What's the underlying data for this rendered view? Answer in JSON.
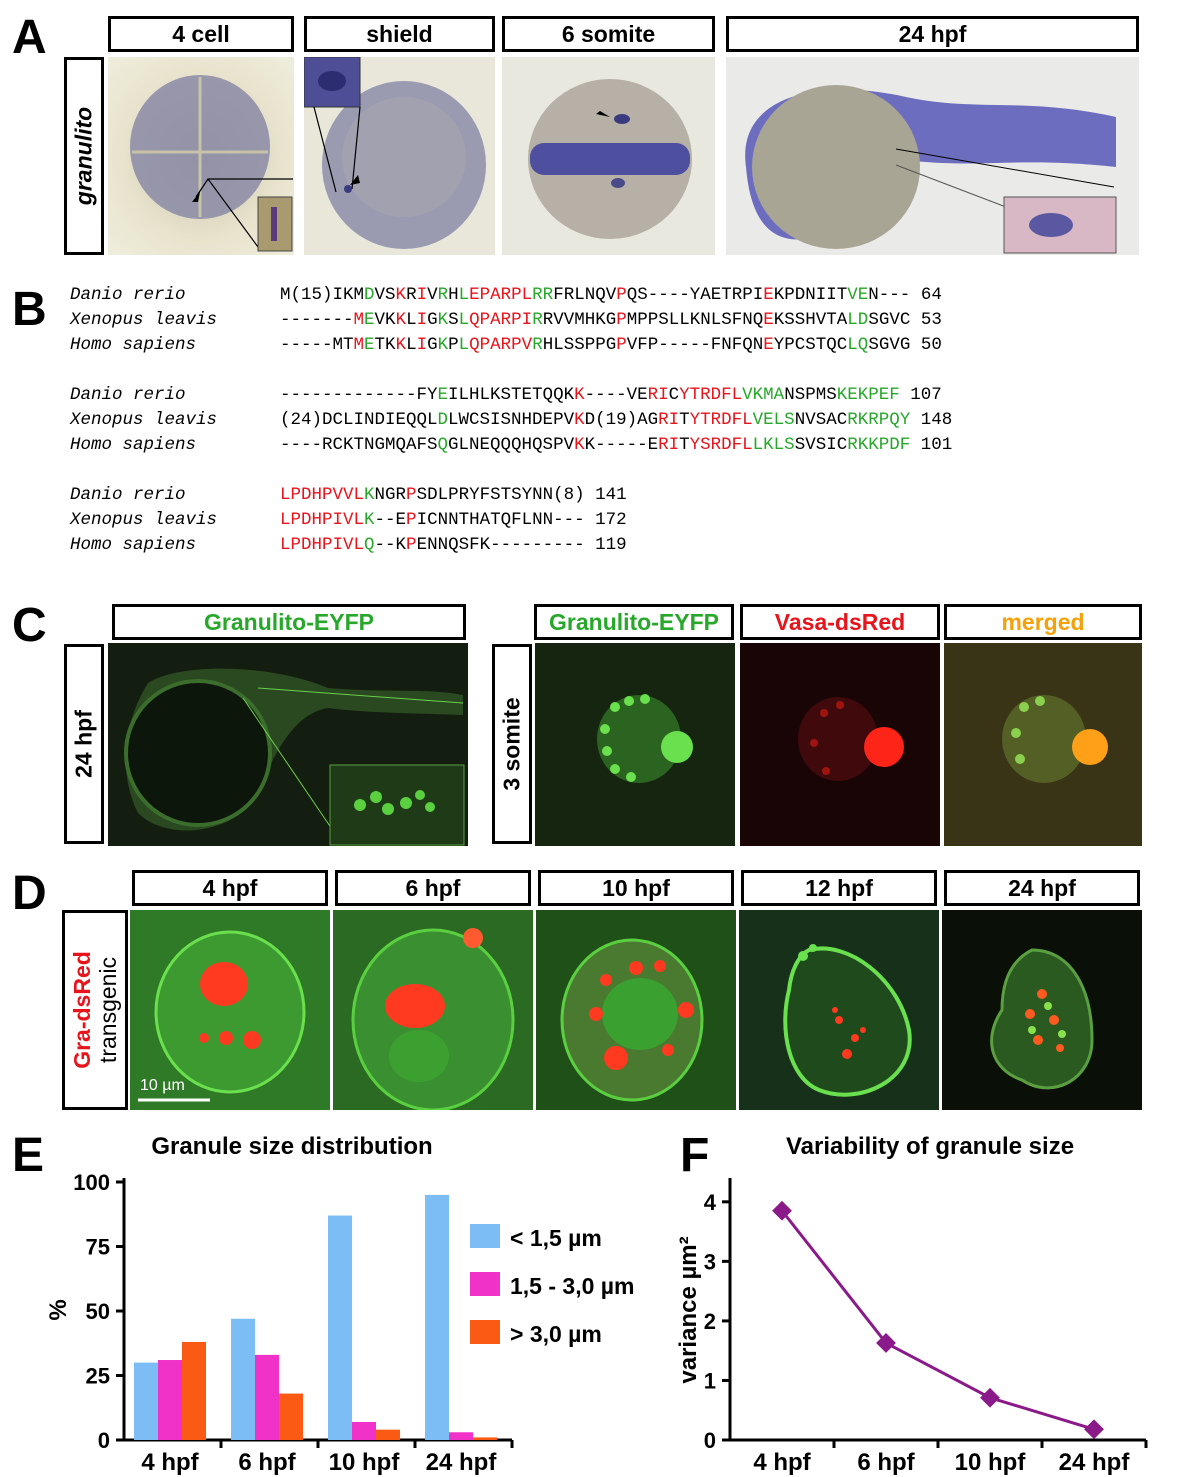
{
  "panel_letters": {
    "a": "A",
    "b": "B",
    "c": "C",
    "d": "D",
    "e": "E",
    "f": "F"
  },
  "panelA": {
    "stages": [
      "4 cell",
      "shield",
      "6 somite",
      "24 hpf"
    ],
    "row_label": "granulito"
  },
  "panelB": {
    "blocks": [
      {
        "rows": [
          {
            "species": "Danio rerio",
            "segs": [
              [
                "",
                "M(15)IKM"
              ],
              [
                "g",
                "D"
              ],
              [
                "",
                "VS"
              ],
              [
                "r",
                "K"
              ],
              [
                "",
                "R"
              ],
              [
                "r",
                "I"
              ],
              [
                "",
                "V"
              ],
              [
                "g",
                "R"
              ],
              [
                "",
                "H"
              ],
              [
                "g",
                "L"
              ],
              [
                "r",
                "EPARPL"
              ],
              [
                "g",
                "RR"
              ],
              [
                "",
                "FRLNQV"
              ],
              [
                "r",
                "P"
              ],
              [
                "",
                "QS----YAETRPI"
              ],
              [
                "r",
                "E"
              ],
              [
                "",
                "KPDNIIT"
              ],
              [
                "g",
                "VE"
              ],
              [
                "",
                "N---"
              ]
            ],
            "end": "64"
          },
          {
            "species": "Xenopus leavis",
            "segs": [
              [
                "",
                "-------"
              ],
              [
                "r",
                "M"
              ],
              [
                "g",
                "E"
              ],
              [
                "",
                "VK"
              ],
              [
                "r",
                "K"
              ],
              [
                "",
                "L"
              ],
              [
                "r",
                "I"
              ],
              [
                "",
                "G"
              ],
              [
                "g",
                "K"
              ],
              [
                "",
                "S"
              ],
              [
                "g",
                "L"
              ],
              [
                "r",
                "QPARPI"
              ],
              [
                "g",
                "R"
              ],
              [
                "",
                "RVVMHKG"
              ],
              [
                "r",
                "P"
              ],
              [
                "",
                "MPPSLLKNLSFNQ"
              ],
              [
                "r",
                "E"
              ],
              [
                "",
                "KSSHVTA"
              ],
              [
                "g",
                "LD"
              ],
              [
                "",
                "SGVC"
              ]
            ],
            "end": "53"
          },
          {
            "species": "Homo sapiens",
            "segs": [
              [
                "",
                "-----MT"
              ],
              [
                "r",
                "M"
              ],
              [
                "g",
                "E"
              ],
              [
                "",
                "TK"
              ],
              [
                "r",
                "K"
              ],
              [
                "",
                "L"
              ],
              [
                "r",
                "I"
              ],
              [
                "",
                "G"
              ],
              [
                "g",
                "K"
              ],
              [
                "",
                "P"
              ],
              [
                "g",
                "L"
              ],
              [
                "r",
                "QPARPV"
              ],
              [
                "g",
                "R"
              ],
              [
                "",
                "HLSSPPG"
              ],
              [
                "r",
                "P"
              ],
              [
                "",
                "VFP-----FNFQN"
              ],
              [
                "r",
                "E"
              ],
              [
                "",
                "YPCSTQC"
              ],
              [
                "g",
                "LQ"
              ],
              [
                "",
                "SGVG"
              ]
            ],
            "end": "50"
          }
        ]
      },
      {
        "rows": [
          {
            "species": "Danio rerio",
            "segs": [
              [
                "",
                "-------------FY"
              ],
              [
                "g",
                "E"
              ],
              [
                "",
                "ILHLKSTETQQK"
              ],
              [
                "r",
                "K"
              ],
              [
                "",
                "----VE"
              ],
              [
                "r",
                "RI"
              ],
              [
                "",
                "C"
              ],
              [
                "r",
                "Y"
              ],
              [
                "r",
                "TRDFL"
              ],
              [
                "g",
                "VKMA"
              ],
              [
                "",
                "NSPMS"
              ],
              [
                "g",
                "KEKPEF"
              ]
            ],
            "end": "107"
          },
          {
            "species": "Xenopus leavis",
            "segs": [
              [
                "",
                "(24)DCLINDIEQQL"
              ],
              [
                "g",
                "D"
              ],
              [
                "",
                "LWCSISNHDEPV"
              ],
              [
                "r",
                "K"
              ],
              [
                "",
                "D(19)AG"
              ],
              [
                "r",
                "RI"
              ],
              [
                "",
                "T"
              ],
              [
                "r",
                "Y"
              ],
              [
                "r",
                "TRDFL"
              ],
              [
                "g",
                "VELS"
              ],
              [
                "",
                "NVSAC"
              ],
              [
                "g",
                "RKRPQY"
              ]
            ],
            "end": "148"
          },
          {
            "species": "Homo sapiens",
            "segs": [
              [
                "",
                "----RCKTNGMQAFS"
              ],
              [
                "g",
                "Q"
              ],
              [
                "",
                "GLNEQQQHQSPV"
              ],
              [
                "r",
                "K"
              ],
              [
                "",
                "K-----E"
              ],
              [
                "r",
                "RI"
              ],
              [
                "",
                "T"
              ],
              [
                "r",
                "Y"
              ],
              [
                "r",
                "SRDFL"
              ],
              [
                "g",
                "LKLS"
              ],
              [
                "",
                "SVSIC"
              ],
              [
                "g",
                "RKKPDF"
              ]
            ],
            "end": "101"
          }
        ]
      },
      {
        "rows": [
          {
            "species": "Danio rerio",
            "segs": [
              [
                "r",
                "LPDHPVVL"
              ],
              [
                "g",
                "K"
              ],
              [
                "",
                "NGR"
              ],
              [
                "r",
                "P"
              ],
              [
                "",
                "SDLPRYFSTSYNN(8)"
              ]
            ],
            "end": "141"
          },
          {
            "species": "Xenopus leavis",
            "segs": [
              [
                "r",
                "LPDHPIVL"
              ],
              [
                "g",
                "K"
              ],
              [
                "",
                "--E"
              ],
              [
                "r",
                "P"
              ],
              [
                "",
                "ICNNTHATQFLNN---"
              ]
            ],
            "end": "172"
          },
          {
            "species": "Homo sapiens",
            "segs": [
              [
                "r",
                "LPDHPIVL"
              ],
              [
                "g",
                "Q"
              ],
              [
                "",
                "--K"
              ],
              [
                "r",
                "P"
              ],
              [
                "",
                "ENNQSFK---------"
              ]
            ],
            "end": "119"
          }
        ]
      }
    ]
  },
  "panelC": {
    "left_title": "Granulito-EYFP",
    "left_row_label": "24 hpf",
    "right_titles": [
      "Granulito-EYFP",
      "Vasa-dsRed",
      "merged"
    ],
    "right_row_label": "3 somite",
    "colors": {
      "green": "#27a82a",
      "red": "#e8141c",
      "orange": "#f5a10a"
    }
  },
  "panelD": {
    "stages": [
      "4 hpf",
      "6 hpf",
      "10 hpf",
      "12 hpf",
      "24 hpf"
    ],
    "row_label_red": "Gra-dsRed",
    "row_label_black": "transgenic",
    "scale_bar": "10 µm"
  },
  "chart_data": [
    {
      "type": "bar",
      "title": "Granule size distribution",
      "ylabel": "%",
      "xlabel": "",
      "categories": [
        "4 hpf",
        "6 hpf",
        "10 hpf",
        "24 hpf"
      ],
      "ylim": [
        0,
        100
      ],
      "yticks": [
        "0",
        "25",
        "50",
        "75",
        "100"
      ],
      "legend_position": "right",
      "series": [
        {
          "name": "< 1,5 µm",
          "color": "#7dbdf5",
          "values": [
            30,
            47,
            87,
            95
          ]
        },
        {
          "name": "1,5 - 3,0 µm",
          "color": "#f032c8",
          "values": [
            31,
            33,
            7,
            3
          ]
        },
        {
          "name": "> 3,0 µm",
          "color": "#fa5a14",
          "values": [
            38,
            18,
            4,
            1
          ]
        }
      ]
    },
    {
      "type": "line",
      "title": "Variability of granule size",
      "ylabel": "variance µm²",
      "xlabel": "",
      "categories": [
        "4 hpf",
        "6 hpf",
        "10 hpf",
        "24 hpf"
      ],
      "ylim": [
        0,
        4.4
      ],
      "yticks": [
        "0",
        "1",
        "2",
        "3",
        "4"
      ],
      "series": [
        {
          "color": "#8a1a8a",
          "values": [
            3.85,
            1.63,
            0.71,
            0.18
          ]
        }
      ]
    }
  ]
}
